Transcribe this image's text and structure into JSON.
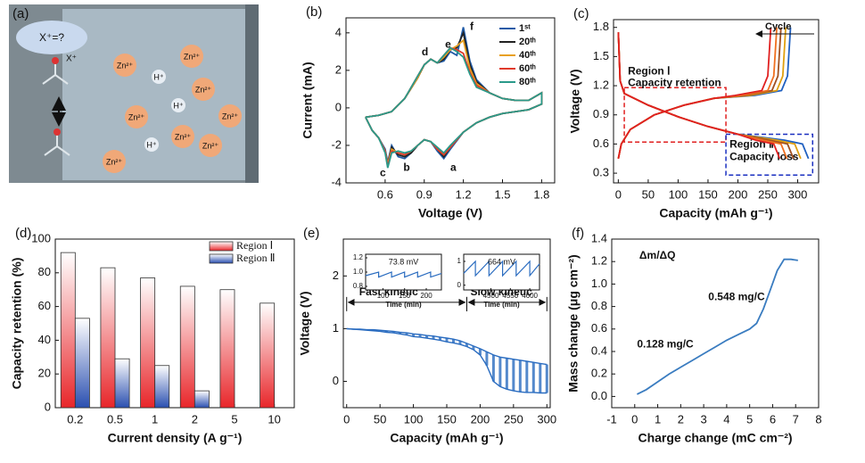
{
  "schematic": {
    "panel": "(a)",
    "bubble": "X⁺=?",
    "molecule_label": "X⁺",
    "ions": [
      "Zn²⁺",
      "Zn²⁺",
      "Zn²⁺",
      "Zn²⁺",
      "Zn²⁺",
      "Zn²⁺",
      "Zn²⁺",
      "Zn²⁺"
    ],
    "protons": [
      "H⁺",
      "H⁺",
      "H⁺"
    ]
  },
  "chart_data": [
    {
      "type": "line",
      "panel": "(b)",
      "xlabel": "Voltage (V)",
      "ylabel": "Current (mA)",
      "xlim": [
        0.3,
        1.9
      ],
      "ylim": [
        -4,
        4.8
      ],
      "xticks": [
        0.6,
        0.9,
        1.2,
        1.5,
        1.8
      ],
      "yticks": [
        -4,
        -2,
        0,
        2,
        4
      ],
      "legend": "upper right",
      "x": [
        0.45,
        0.55,
        0.65,
        0.75,
        0.85,
        0.9,
        0.95,
        1.0,
        1.05,
        1.1,
        1.15,
        1.2,
        1.25,
        1.3,
        1.4,
        1.5,
        1.6,
        1.7,
        1.8,
        1.8,
        1.7,
        1.6,
        1.5,
        1.4,
        1.3,
        1.2,
        1.1,
        1.05,
        1.0,
        0.95,
        0.9,
        0.85,
        0.8,
        0.75,
        0.7,
        0.65,
        0.62,
        0.6,
        0.55,
        0.5,
        0.45
      ],
      "series": [
        {
          "name": "1ˢᵗ",
          "color": "#1f5aa6",
          "values": [
            -0.5,
            -0.4,
            -0.2,
            0.5,
            1.6,
            2.3,
            2.6,
            2.4,
            2.5,
            3.0,
            2.8,
            4.3,
            2.5,
            1.5,
            0.8,
            0.5,
            0.4,
            0.4,
            0.8,
            0.2,
            -0.1,
            -0.2,
            -0.3,
            -0.5,
            -0.8,
            -1.3,
            -2.2,
            -2.7,
            -2.3,
            -1.8,
            -1.7,
            -2.0,
            -2.4,
            -2.7,
            -2.6,
            -2.0,
            -2.9,
            -2.2,
            -1.6,
            -1.2,
            -0.5
          ]
        },
        {
          "name": "20ᵗʰ",
          "color": "#222222",
          "values": [
            -0.5,
            -0.4,
            -0.2,
            0.5,
            1.6,
            2.3,
            2.6,
            2.4,
            2.6,
            3.1,
            3.2,
            4.0,
            2.3,
            1.4,
            0.8,
            0.5,
            0.4,
            0.4,
            0.8,
            0.2,
            -0.1,
            -0.2,
            -0.3,
            -0.5,
            -0.8,
            -1.3,
            -2.1,
            -2.6,
            -2.2,
            -1.8,
            -1.7,
            -2.0,
            -2.4,
            -2.6,
            -2.5,
            -2.1,
            -3.0,
            -2.3,
            -1.6,
            -1.2,
            -0.5
          ]
        },
        {
          "name": "40ᵗʰ",
          "color": "#e8a020",
          "values": [
            -0.5,
            -0.4,
            -0.2,
            0.5,
            1.6,
            2.3,
            2.6,
            2.4,
            2.7,
            3.1,
            3.3,
            3.6,
            2.1,
            1.3,
            0.8,
            0.5,
            0.4,
            0.4,
            0.8,
            0.2,
            -0.1,
            -0.2,
            -0.3,
            -0.5,
            -0.8,
            -1.3,
            -2.1,
            -2.5,
            -2.2,
            -1.8,
            -1.7,
            -2.0,
            -2.3,
            -2.5,
            -2.4,
            -2.2,
            -3.0,
            -2.3,
            -1.6,
            -1.2,
            -0.5
          ]
        },
        {
          "name": "60ᵗʰ",
          "color": "#e03a2a",
          "values": [
            -0.5,
            -0.4,
            -0.2,
            0.5,
            1.7,
            2.3,
            2.6,
            2.4,
            2.8,
            3.2,
            3.1,
            2.9,
            1.9,
            1.2,
            0.8,
            0.5,
            0.4,
            0.4,
            0.8,
            0.2,
            -0.1,
            -0.2,
            -0.3,
            -0.5,
            -0.8,
            -1.3,
            -2.1,
            -2.5,
            -2.2,
            -1.8,
            -1.7,
            -2.0,
            -2.3,
            -2.5,
            -2.4,
            -2.3,
            -3.1,
            -2.3,
            -1.6,
            -1.2,
            -0.5
          ]
        },
        {
          "name": "80ᵗʰ",
          "color": "#2a9a8a",
          "values": [
            -0.5,
            -0.4,
            -0.2,
            0.5,
            1.7,
            2.3,
            2.6,
            2.4,
            2.8,
            3.2,
            3.0,
            2.7,
            1.8,
            1.1,
            0.8,
            0.5,
            0.4,
            0.4,
            0.8,
            0.2,
            -0.1,
            -0.2,
            -0.3,
            -0.5,
            -0.8,
            -1.3,
            -2.0,
            -2.4,
            -2.1,
            -1.8,
            -1.7,
            -2.0,
            -2.3,
            -2.4,
            -2.3,
            -2.4,
            -3.2,
            -2.4,
            -1.6,
            -1.2,
            -0.5
          ]
        }
      ],
      "annotations": [
        {
          "text": "a",
          "x": 1.1,
          "y": -3.2
        },
        {
          "text": "b",
          "x": 0.74,
          "y": -3.2
        },
        {
          "text": "c",
          "x": 0.56,
          "y": -3.5
        },
        {
          "text": "d",
          "x": 0.88,
          "y": 2.95
        },
        {
          "text": "e",
          "x": 1.06,
          "y": 3.35
        },
        {
          "text": "f",
          "x": 1.25,
          "y": 4.3
        }
      ]
    },
    {
      "type": "line",
      "panel": "(c)",
      "xlabel": "Capacity (mAh g⁻¹)",
      "ylabel": "Voltage (V)",
      "xlim": [
        -8,
        335
      ],
      "ylim": [
        0.2,
        1.88
      ],
      "xticks": [
        0,
        50,
        100,
        150,
        200,
        250,
        300
      ],
      "yticks": [
        0.3,
        0.6,
        0.9,
        1.2,
        1.5,
        1.8
      ],
      "annotation": "Cycle",
      "regions": [
        {
          "label": "Region Ⅰ",
          "note": "Capacity retention",
          "color": "#e02020",
          "xlim": [
            10,
            180
          ],
          "ylim": [
            0.62,
            1.18
          ]
        },
        {
          "label": "Region Ⅱ",
          "note": "Capacity loss",
          "color": "#1a2fc0",
          "xlim": [
            180,
            325
          ],
          "ylim": [
            0.28,
            0.7
          ]
        }
      ],
      "series": [
        {
          "color": "#2060c0",
          "x": [
            0,
            3,
            10,
            50,
            100,
            150,
            200,
            278,
            308,
            318,
            null,
            0,
            5,
            20,
            60,
            110,
            160,
            228,
            273,
            283,
            288
          ],
          "values": [
            1.75,
            1.25,
            1.12,
            1.0,
            0.88,
            0.78,
            0.7,
            0.64,
            0.6,
            0.45,
            null,
            0.45,
            0.6,
            0.75,
            0.9,
            1.0,
            1.07,
            1.1,
            1.15,
            1.3,
            1.8
          ]
        },
        {
          "color": "#e0a010",
          "x": [
            0,
            3,
            10,
            50,
            100,
            150,
            200,
            265,
            295,
            305,
            null,
            0,
            5,
            20,
            60,
            110,
            160,
            220,
            265,
            275,
            280
          ],
          "values": [
            1.75,
            1.25,
            1.12,
            1.0,
            0.88,
            0.78,
            0.7,
            0.64,
            0.6,
            0.45,
            null,
            0.45,
            0.6,
            0.75,
            0.9,
            1.0,
            1.07,
            1.1,
            1.15,
            1.3,
            1.8
          ]
        },
        {
          "color": "#a05020",
          "x": [
            0,
            3,
            10,
            50,
            100,
            150,
            200,
            253,
            283,
            293,
            null,
            0,
            5,
            20,
            60,
            110,
            160,
            212,
            257,
            267,
            272
          ],
          "values": [
            1.75,
            1.25,
            1.12,
            1.0,
            0.88,
            0.78,
            0.7,
            0.64,
            0.6,
            0.45,
            null,
            0.45,
            0.6,
            0.75,
            0.9,
            1.0,
            1.07,
            1.1,
            1.15,
            1.3,
            1.8
          ]
        },
        {
          "color": "#f07020",
          "x": [
            0,
            3,
            10,
            50,
            100,
            150,
            200,
            242,
            272,
            282,
            null,
            0,
            5,
            20,
            60,
            110,
            160,
            205,
            250,
            260,
            265
          ],
          "values": [
            1.75,
            1.25,
            1.12,
            1.0,
            0.88,
            0.78,
            0.7,
            0.64,
            0.6,
            0.45,
            null,
            0.45,
            0.6,
            0.75,
            0.9,
            1.0,
            1.07,
            1.1,
            1.15,
            1.3,
            1.8
          ]
        },
        {
          "color": "#e02020",
          "x": [
            0,
            3,
            10,
            50,
            100,
            150,
            200,
            230,
            260,
            270,
            null,
            0,
            5,
            20,
            60,
            110,
            160,
            195,
            240,
            250,
            255
          ],
          "values": [
            1.75,
            1.25,
            1.12,
            1.0,
            0.88,
            0.78,
            0.7,
            0.64,
            0.6,
            0.45,
            null,
            0.45,
            0.6,
            0.75,
            0.9,
            1.0,
            1.07,
            1.1,
            1.15,
            1.3,
            1.8
          ]
        }
      ]
    },
    {
      "type": "bar",
      "panel": "(d)",
      "xlabel": "Current density (A g⁻¹)",
      "ylabel": "Capacity retention (%)",
      "categories": [
        "0.2",
        "0.5",
        "1",
        "2",
        "5",
        "10"
      ],
      "ylim": [
        0,
        100
      ],
      "yticks": [
        0,
        20,
        40,
        60,
        80,
        100
      ],
      "legend": "upper right",
      "series": [
        {
          "name": "Region Ⅰ",
          "color": "#e8262a",
          "values": [
            92,
            83,
            77,
            72,
            70,
            62
          ]
        },
        {
          "name": "Region Ⅱ",
          "color": "#2a4fb0",
          "values": [
            53,
            29,
            25,
            10,
            null,
            null
          ]
        }
      ]
    },
    {
      "type": "band",
      "panel": "(e)",
      "xlabel": "Capacity (mAh g⁻¹)",
      "ylabel": "Voltage (V)",
      "xlim": [
        -5,
        305
      ],
      "ylim": [
        -0.5,
        2.7
      ],
      "xticks": [
        0,
        50,
        100,
        150,
        200,
        250,
        300
      ],
      "yticks": [
        0,
        1,
        2
      ],
      "color": "#2a6cc0",
      "phases": [
        {
          "label": "Fast kinetic",
          "range": [
            0,
            180
          ]
        },
        {
          "label": "Slow kinetic",
          "range": [
            180,
            300
          ]
        }
      ],
      "x": [
        0,
        10,
        20,
        30,
        40,
        50,
        60,
        70,
        80,
        90,
        100,
        110,
        120,
        130,
        140,
        150,
        160,
        170,
        180,
        190,
        200,
        210,
        220,
        230,
        240,
        250,
        260,
        270,
        280,
        290,
        300
      ],
      "series": [
        {
          "values": [
            1.0,
            0.99,
            0.99,
            0.98,
            0.98,
            0.97,
            0.96,
            0.95,
            0.93,
            0.92,
            0.9,
            0.89,
            0.87,
            0.86,
            0.84,
            0.82,
            0.8,
            0.77,
            0.72,
            0.67,
            0.62,
            0.56,
            0.5,
            0.46,
            0.44,
            0.42,
            0.4,
            0.38,
            0.36,
            0.34,
            0.32
          ]
        },
        {
          "values": [
            1.0,
            0.99,
            0.98,
            0.97,
            0.96,
            0.95,
            0.93,
            0.92,
            0.9,
            0.88,
            0.85,
            0.84,
            0.82,
            0.8,
            0.78,
            0.75,
            0.73,
            0.7,
            0.66,
            0.6,
            0.5,
            0.3,
            0.0,
            -0.1,
            -0.15,
            -0.18,
            -0.2,
            -0.21,
            -0.21,
            -0.22,
            -0.22
          ]
        }
      ],
      "insets": [
        {
          "type": "line",
          "annotation": "73.8 mV",
          "xlabel": "Time (min)",
          "xlim": [
            60,
            235
          ],
          "ylim": [
            0.75,
            1.25
          ],
          "xticks": [
            100,
            150,
            200
          ],
          "yticks": [
            0.8,
            {
              "value": 1,
              "label": "1.0"
            },
            1.2
          ],
          "x": [
            60,
            90,
            90,
            120,
            120,
            150,
            150,
            180,
            180,
            210,
            210,
            235
          ],
          "values": [
            0.95,
            1.0,
            0.93,
            1.0,
            0.93,
            1.0,
            0.93,
            1.0,
            0.93,
            1.0,
            0.93,
            0.98
          ]
        },
        {
          "type": "line",
          "annotation": "664 mV",
          "xlabel": "Time (min)",
          "xlim": [
            4430,
            4625
          ],
          "ylim": [
            -0.2,
            1.3
          ],
          "xticks": [
            4500,
            4550,
            4600
          ],
          "yticks": [
            0,
            1
          ],
          "x": [
            4430,
            4460,
            4460,
            4495,
            4495,
            4530,
            4530,
            4565,
            4565,
            4600,
            4600,
            4625
          ],
          "values": [
            0.5,
            1.0,
            0.4,
            1.0,
            0.4,
            1.0,
            0.4,
            1.0,
            0.4,
            1.0,
            0.4,
            0.9
          ]
        }
      ]
    },
    {
      "type": "line",
      "panel": "(f)",
      "xlabel": "Charge change (mC cm⁻²)",
      "ylabel": "Mass change (μg cm⁻²)",
      "xlim": [
        -1,
        8
      ],
      "ylim": [
        -0.1,
        1.4
      ],
      "xticks": [
        -1,
        0,
        1,
        2,
        3,
        4,
        5,
        6,
        7,
        8
      ],
      "yticks": [
        {
          "value": 0,
          "label": "0.0"
        },
        0.2,
        0.4,
        0.6,
        0.8,
        {
          "value": 1,
          "label": "1.0"
        },
        1.2,
        1.4
      ],
      "annotations": [
        {
          "text": "Δm/ΔQ",
          "x": 0.2,
          "y": 1.25
        },
        {
          "text": "0.548 mg/C",
          "x": 3.2,
          "y": 0.88
        },
        {
          "text": "0.128 mg/C",
          "x": 0.1,
          "y": 0.46
        }
      ],
      "series": [
        {
          "color": "#3a7cc0",
          "x": [
            0.1,
            0.5,
            1,
            1.5,
            2,
            2.5,
            3,
            3.5,
            4,
            4.5,
            5,
            5.3,
            5.6,
            5.9,
            6.2,
            6.5,
            6.8,
            7.1
          ],
          "values": [
            0.02,
            0.06,
            0.13,
            0.2,
            0.26,
            0.32,
            0.38,
            0.44,
            0.5,
            0.55,
            0.6,
            0.65,
            0.78,
            0.95,
            1.12,
            1.22,
            1.22,
            1.21
          ]
        }
      ]
    }
  ]
}
